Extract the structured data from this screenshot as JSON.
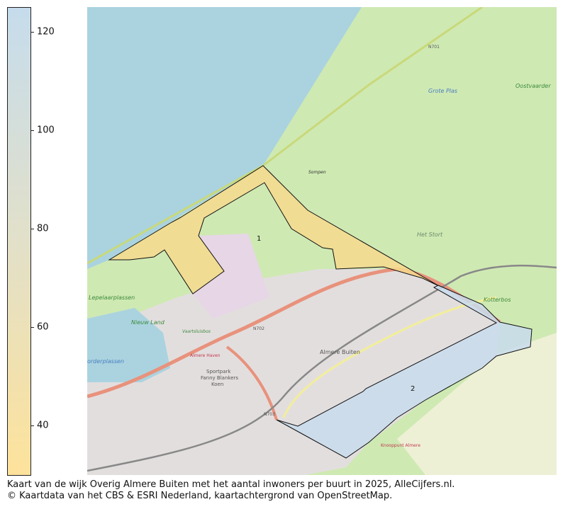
{
  "colorbar": {
    "min": 30,
    "max": 125,
    "ticks": [
      {
        "value": 120,
        "label": "120"
      },
      {
        "value": 100,
        "label": "100"
      },
      {
        "value": 80,
        "label": "80"
      },
      {
        "value": 60,
        "label": "60"
      },
      {
        "value": 40,
        "label": "40"
      }
    ],
    "color_top": "#c6dcec",
    "color_mid": "#e2e0c9",
    "color_bottom": "#fde29b"
  },
  "regions": [
    {
      "label": "1",
      "fill": "#f6d98d"
    },
    {
      "label": "2",
      "fill": "#c8dcec"
    }
  ],
  "map_labels": {
    "grote_plas": "Grote Plas",
    "oostvaarders": "Oostvaarder",
    "het_stort": "Het Stort",
    "sompen": "Sompen",
    "lepelaarplassen": "Lepelaarplassen",
    "nieuw_land": "Nieuw Land",
    "almere_buiten": "Almere Buiten",
    "kotterbos": "Kotterbos",
    "n701": "N701",
    "n702": "N702",
    "n703": "N703",
    "vaartsluisbos": "Vaartsluisbos",
    "almere_haven": "Almere Haven",
    "sportpark": "Sportpark",
    "fanny": "Fanny Blankers",
    "koen": "Koen",
    "knooppunt": "Knooppunt Almere",
    "noorderplassen": "orderplassen"
  },
  "caption": {
    "line1": "Kaart van de wijk Overig Almere Buiten met het aantal inwoners per buurt in 2025, AlleCijfers.nl.",
    "line2": "© Kaartdata van het CBS & ESRI Nederland, kaartachtergrond van OpenStreetMap."
  }
}
